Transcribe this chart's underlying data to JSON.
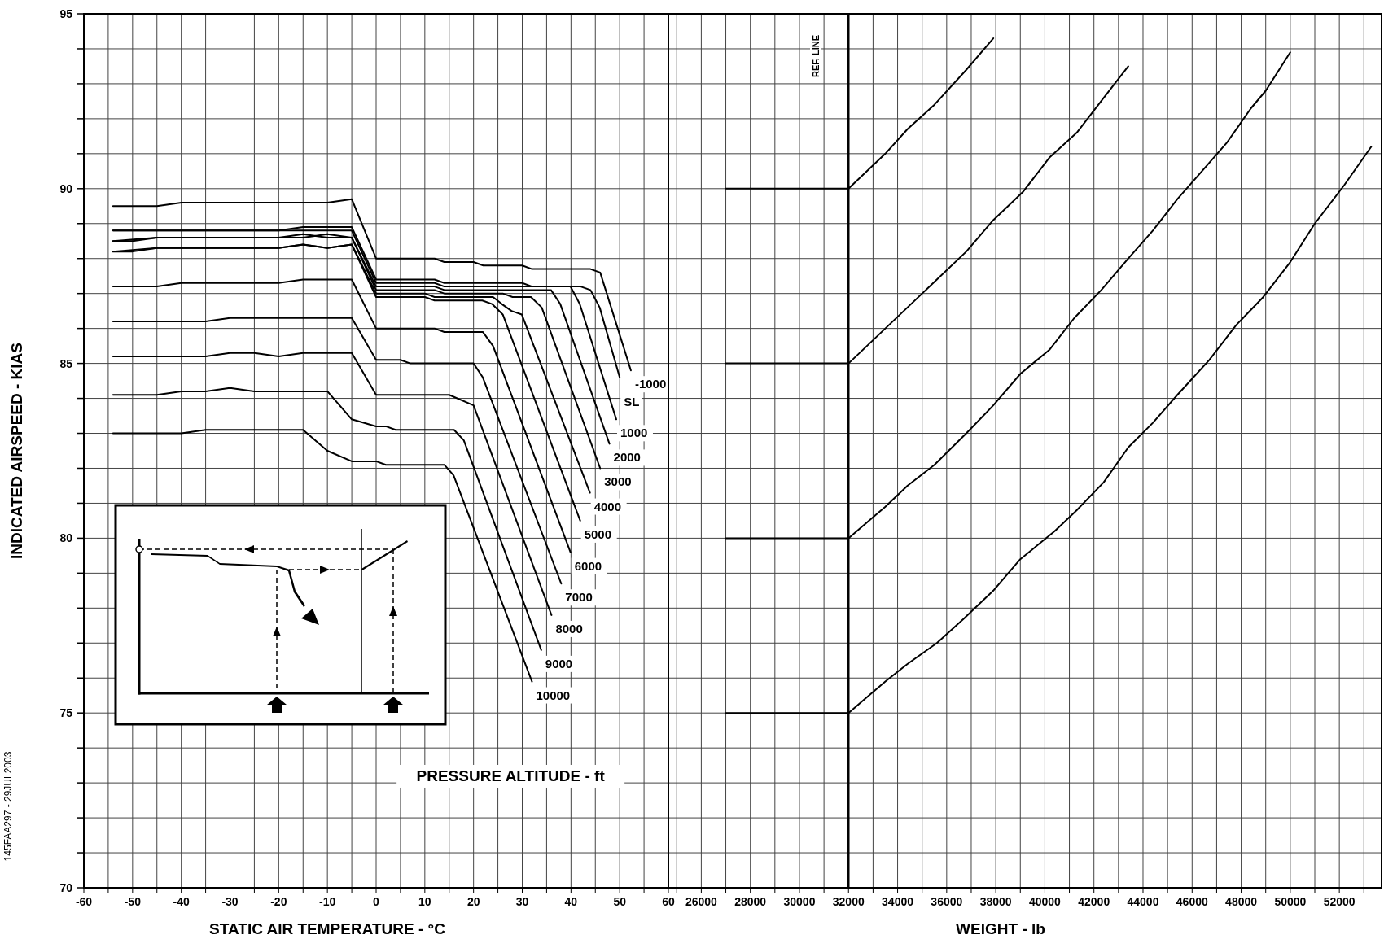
{
  "chart_data": [
    {
      "type": "line",
      "xlabel": "STATIC AIR TEMPERATURE - °C",
      "ylabel": "INDICATED AIRSPEED - KIAS",
      "xlim": [
        -60,
        60
      ],
      "ylim": [
        70,
        95
      ],
      "grid": true,
      "xticks": [
        -60,
        {
          "value": -55,
          "label": null
        },
        -50,
        {
          "value": -45,
          "label": null
        },
        -40,
        {
          "value": -35,
          "label": null
        },
        -30,
        {
          "value": -25,
          "label": null
        },
        -20,
        {
          "value": -15,
          "label": null
        },
        -10,
        {
          "value": -5,
          "label": null
        },
        0,
        {
          "value": 5,
          "label": null
        },
        10,
        {
          "value": 15,
          "label": null
        },
        20,
        {
          "value": 25,
          "label": null
        },
        30,
        {
          "value": 35,
          "label": null
        },
        40,
        {
          "value": 45,
          "label": null
        },
        50,
        {
          "value": 55,
          "label": null
        },
        60
      ],
      "yticks": [
        70,
        {
          "value": 71,
          "label": null
        },
        {
          "value": 72,
          "label": null
        },
        {
          "value": 73,
          "label": null
        },
        {
          "value": 74,
          "label": null
        },
        75,
        {
          "value": 76,
          "label": null
        },
        {
          "value": 77,
          "label": null
        },
        {
          "value": 78,
          "label": null
        },
        {
          "value": 79,
          "label": null
        },
        80,
        {
          "value": 81,
          "label": null
        },
        {
          "value": 82,
          "label": null
        },
        {
          "value": 83,
          "label": null
        },
        {
          "value": 84,
          "label": null
        },
        85,
        {
          "value": 86,
          "label": null
        },
        {
          "value": 87,
          "label": null
        },
        {
          "value": 88,
          "label": null
        },
        {
          "value": 89,
          "label": null
        },
        90,
        {
          "value": 91,
          "label": null
        },
        {
          "value": 92,
          "label": null
        },
        {
          "value": 93,
          "label": null
        },
        {
          "value": 94,
          "label": null
        },
        95
      ],
      "annotations": [
        "PRESSURE ALTITUDE - ft",
        "145FAA297 - 29JUL2003"
      ],
      "series": [
        {
          "name": "-1000",
          "color": "#000000",
          "x": [
            -54,
            -45,
            -40,
            -10,
            -5,
            0,
            12,
            14,
            20,
            22,
            30,
            32,
            44,
            46,
            52.3
          ],
          "values": [
            89.5,
            89.5,
            89.6,
            89.6,
            89.7,
            88.0,
            88.0,
            87.9,
            87.9,
            87.8,
            87.8,
            87.7,
            87.7,
            87.6,
            84.8
          ]
        },
        {
          "name": "SL",
          "color": "#000000",
          "x": [
            -54,
            -20,
            -15,
            -5,
            0,
            12,
            14,
            30,
            32,
            42,
            44,
            45.9,
            50
          ],
          "values": [
            88.8,
            88.8,
            88.9,
            88.9,
            87.4,
            87.4,
            87.3,
            87.3,
            87.2,
            87.2,
            87.1,
            86.6,
            84.6
          ]
        },
        {
          "name": "1000",
          "color": "#000000",
          "x": [
            -54,
            -5,
            0,
            12,
            14,
            39.9,
            41.8,
            49.3
          ],
          "values": [
            88.8,
            88.8,
            87.3,
            87.3,
            87.2,
            87.2,
            86.7,
            83.4
          ]
        },
        {
          "name": "2000",
          "color": "#000000",
          "x": [
            -54,
            -50,
            -45,
            -15,
            -10,
            -5,
            0,
            12,
            14,
            35.9,
            37.8,
            47.9
          ],
          "values": [
            88.5,
            88.5,
            88.6,
            88.6,
            88.7,
            88.6,
            87.2,
            87.2,
            87.1,
            87.1,
            86.7,
            82.7
          ]
        },
        {
          "name": "3000",
          "color": "#000000",
          "x": [
            -54,
            -45,
            -20,
            -15,
            -10,
            -5,
            0,
            12,
            14,
            26,
            28,
            31.8,
            34,
            46
          ],
          "values": [
            88.5,
            88.6,
            88.6,
            88.7,
            88.6,
            88.6,
            87.1,
            87.1,
            87.0,
            87.0,
            86.9,
            86.9,
            86.6,
            82.0
          ]
        },
        {
          "name": "4000",
          "color": "#000000",
          "x": [
            -54,
            -50,
            -45,
            -20,
            -15,
            -10,
            -5,
            0,
            10,
            12,
            24,
            25.8,
            27.8,
            29.9,
            43.9
          ],
          "values": [
            88.2,
            88.2,
            88.3,
            88.3,
            88.4,
            88.3,
            88.4,
            87.0,
            87.0,
            86.9,
            86.9,
            86.7,
            86.5,
            86.4,
            81.3
          ]
        },
        {
          "name": "5000",
          "color": "#000000",
          "x": [
            -54,
            -45,
            -20,
            -15,
            -10,
            -5,
            0,
            10,
            12,
            21.8,
            23.8,
            26,
            41.9
          ],
          "values": [
            88.2,
            88.3,
            88.3,
            88.4,
            88.3,
            88.4,
            86.9,
            86.9,
            86.8,
            86.8,
            86.7,
            86.4,
            80.5
          ]
        },
        {
          "name": "6000",
          "color": "#000000",
          "x": [
            -54,
            -45,
            -40,
            -20,
            -15,
            -5,
            0,
            12,
            14,
            21.9,
            24,
            39.9
          ],
          "values": [
            87.2,
            87.2,
            87.3,
            87.3,
            87.4,
            87.4,
            86.0,
            86.0,
            85.9,
            85.9,
            85.5,
            79.6
          ]
        },
        {
          "name": "7000",
          "color": "#000000",
          "x": [
            -54,
            -35,
            -30,
            -5,
            0,
            5,
            7,
            20,
            21.9,
            38
          ],
          "values": [
            86.2,
            86.2,
            86.3,
            86.3,
            85.1,
            85.1,
            85.0,
            85.0,
            84.6,
            78.7
          ]
        },
        {
          "name": "8000",
          "color": "#000000",
          "x": [
            -54,
            -35,
            -30,
            -25,
            -20,
            -15,
            -5,
            0,
            15,
            20,
            36
          ],
          "values": [
            85.2,
            85.2,
            85.3,
            85.3,
            85.2,
            85.3,
            85.3,
            84.1,
            84.1,
            83.8,
            77.8
          ]
        },
        {
          "name": "9000",
          "color": "#000000",
          "x": [
            -54,
            -45,
            -40,
            -35,
            -30,
            -25,
            -10,
            -5,
            0,
            2,
            4,
            16,
            18,
            33.9
          ],
          "values": [
            84.1,
            84.1,
            84.2,
            84.2,
            84.3,
            84.2,
            84.2,
            83.4,
            83.2,
            83.2,
            83.1,
            83.1,
            82.8,
            76.8
          ]
        },
        {
          "name": "10000",
          "color": "#000000",
          "x": [
            -54,
            -40,
            -35,
            -15,
            -10,
            -5,
            0,
            2,
            14,
            15.9,
            32
          ],
          "values": [
            83.0,
            83.0,
            83.1,
            83.1,
            82.5,
            82.2,
            82.2,
            82.1,
            82.1,
            81.8,
            75.9
          ]
        }
      ]
    },
    {
      "type": "line",
      "xlabel": "WEIGHT - lb",
      "xlim": [
        24660,
        53720
      ],
      "ylim": [
        70,
        95
      ],
      "grid": true,
      "tick_labels": "x",
      "xticks": [
        {
          "value": 25000,
          "label": null
        },
        26000,
        {
          "value": 27000,
          "label": null
        },
        28000,
        {
          "value": 29000,
          "label": null
        },
        30000,
        {
          "value": 31000,
          "label": null
        },
        32000,
        {
          "value": 33000,
          "label": null
        },
        34000,
        {
          "value": 35000,
          "label": null
        },
        36000,
        {
          "value": 37000,
          "label": null
        },
        38000,
        {
          "value": 39000,
          "label": null
        },
        40000,
        {
          "value": 41000,
          "label": null
        },
        42000,
        {
          "value": 43000,
          "label": null
        },
        44000,
        {
          "value": 45000,
          "label": null
        },
        46000,
        {
          "value": 47000,
          "label": null
        },
        48000,
        {
          "value": 49000,
          "label": null
        },
        50000,
        {
          "value": 51000,
          "label": null
        },
        52000,
        {
          "value": 53000,
          "label": null
        }
      ],
      "yticks": [
        70,
        {
          "value": 71,
          "label": null
        },
        {
          "value": 72,
          "label": null
        },
        {
          "value": 73,
          "label": null
        },
        {
          "value": 74,
          "label": null
        },
        75,
        {
          "value": 76,
          "label": null
        },
        {
          "value": 77,
          "label": null
        },
        {
          "value": 78,
          "label": null
        },
        {
          "value": 79,
          "label": null
        },
        80,
        {
          "value": 81,
          "label": null
        },
        {
          "value": 82,
          "label": null
        },
        {
          "value": 83,
          "label": null
        },
        {
          "value": 84,
          "label": null
        },
        85,
        {
          "value": 86,
          "label": null
        },
        {
          "value": 87,
          "label": null
        },
        {
          "value": 88,
          "label": null
        },
        {
          "value": 89,
          "label": null
        },
        90,
        {
          "value": 91,
          "label": null
        },
        {
          "value": 92,
          "label": null
        },
        {
          "value": 93,
          "label": null
        },
        {
          "value": 94,
          "label": null
        },
        95
      ],
      "ref_lines": [
        {
          "axis": "x",
          "value": 32000,
          "label": "REF. LINE"
        }
      ],
      "series": [
        {
          "color": "#000000",
          "x": [
            27000,
            32000,
            33500,
            34400,
            35500,
            36800,
            37900
          ],
          "values": [
            90,
            90,
            91.0,
            91.7,
            92.4,
            93.4,
            94.3
          ]
        },
        {
          "color": "#000000",
          "x": [
            27000,
            32000,
            33500,
            34400,
            35600,
            36800,
            37900,
            39100,
            40200,
            41300,
            42400,
            43400
          ],
          "values": [
            85,
            85,
            86.0,
            86.6,
            87.4,
            88.2,
            89.1,
            89.9,
            90.9,
            91.6,
            92.6,
            93.5
          ]
        },
        {
          "color": "#000000",
          "x": [
            27000,
            32000,
            32500,
            33500,
            34400,
            35500,
            36800,
            37900,
            39000,
            40200,
            41200,
            42300,
            43400,
            44400,
            45400,
            46400,
            47400,
            48400,
            49000,
            50000
          ],
          "values": [
            80,
            80,
            80.3,
            80.9,
            81.5,
            82.1,
            83.0,
            83.8,
            84.7,
            85.4,
            86.3,
            87.1,
            88.0,
            88.8,
            89.7,
            90.5,
            91.3,
            92.3,
            92.8,
            93.9
          ]
        },
        {
          "color": "#000000",
          "x": [
            27000,
            32000,
            32500,
            33500,
            34400,
            35600,
            36700,
            37900,
            39000,
            40400,
            41300,
            42400,
            43400,
            44400,
            45400,
            46700,
            47800,
            48900,
            50000,
            51000,
            52200,
            53300
          ],
          "values": [
            75,
            75,
            75.3,
            75.9,
            76.4,
            77.0,
            77.7,
            78.5,
            79.4,
            80.2,
            80.8,
            81.6,
            82.6,
            83.3,
            84.1,
            85.1,
            86.1,
            86.9,
            87.9,
            89.0,
            90.1,
            91.2
          ]
        }
      ]
    }
  ]
}
